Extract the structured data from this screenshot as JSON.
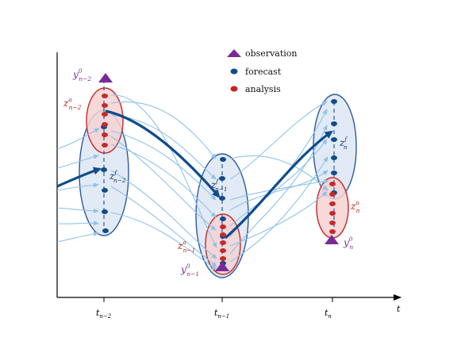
{
  "axis": {
    "time_label": "t",
    "ticks": [
      {
        "base": "t",
        "sub": "n−2"
      },
      {
        "base": "t",
        "sub": "n−1"
      },
      {
        "base": "t",
        "sub": "n"
      }
    ]
  },
  "legend": [
    {
      "label": "observation",
      "marker": "triangle",
      "color": "#7a2a96"
    },
    {
      "label": "forecast",
      "marker": "ellipse",
      "color": "#114a8f"
    },
    {
      "label": "analysis",
      "marker": "ellipse",
      "color": "#cc1f1f"
    }
  ],
  "labels": {
    "obs_n2": {
      "base": "y",
      "sup": "0",
      "sub": "n−2"
    },
    "obs_n1": {
      "base": "y",
      "sup": "0",
      "sub": "n−1"
    },
    "obs_n": {
      "base": "y",
      "sup": "0",
      "sub": "n"
    },
    "an_n2": {
      "base": "z",
      "sup": "a",
      "sub": "n−2"
    },
    "an_n1": {
      "base": "z",
      "sup": "a",
      "sub": "n−1"
    },
    "an_n": {
      "base": "z",
      "sup": "a",
      "sub": "n"
    },
    "fc_n2": {
      "base": "z",
      "sup": "f",
      "sub": "n−2"
    },
    "fc_n1": {
      "base": "z",
      "sup": "f",
      "sub": "n−1"
    },
    "fc_n": {
      "base": "z",
      "sup": "f",
      "sub": "n"
    }
  },
  "colors": {
    "forecast_fill": "#dde6f3",
    "forecast_stroke": "#2a5a9c",
    "analysis_fill": "#f6d2d2",
    "analysis_stroke": "#c22b2b",
    "trajectory": "#0f4c8a",
    "ensemble": "#8fc2ea",
    "observation": "#7a2a96",
    "forecast_text": "#17325c",
    "analysis_text": "#c01e1e"
  }
}
